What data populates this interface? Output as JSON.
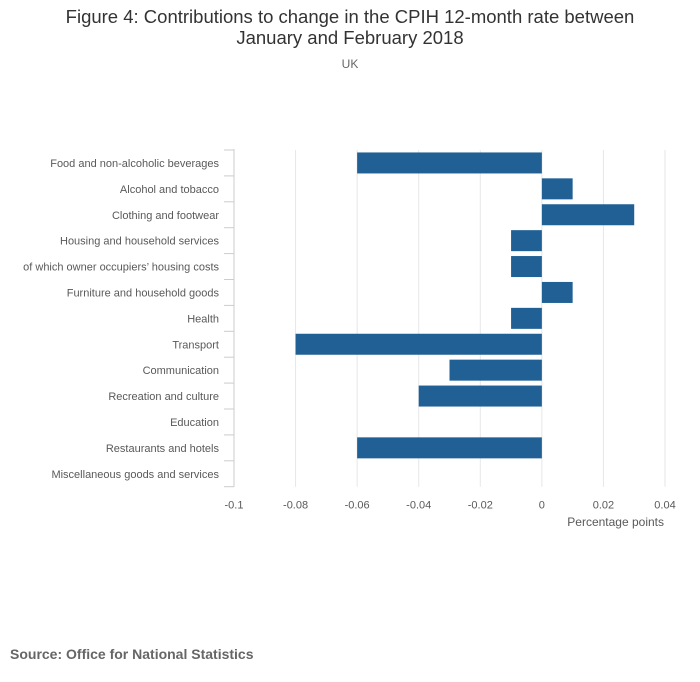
{
  "header": {
    "title_line1": "Figure 4: Contributions to change in the CPIH 12-month rate between",
    "title_line2": "January and February 2018",
    "subtitle": "UK"
  },
  "footer": {
    "source": "Source: Office for National Statistics"
  },
  "colors": {
    "bar": "#206095",
    "grid": "#e6e6e6",
    "axis": "#cccccc",
    "label": "#595959"
  },
  "chart_data": {
    "type": "bar",
    "orientation": "horizontal",
    "title": "Figure 4: Contributions to change in the CPIH 12-month rate between January and February 2018",
    "subtitle": "UK",
    "xlabel": "Percentage points",
    "ylabel": "",
    "xlim": [
      -0.1,
      0.04
    ],
    "x_ticks": [
      -0.1,
      -0.08,
      -0.06,
      -0.04,
      -0.02,
      0,
      0.02,
      0.04
    ],
    "x_tick_labels": [
      "-0.1",
      "-0.08",
      "-0.06",
      "-0.04",
      "-0.02",
      "0",
      "0.02",
      "0.04"
    ],
    "grid": true,
    "legend": "none",
    "categories": [
      "Food and non-alcoholic beverages",
      "Alcohol and tobacco",
      "Clothing and footwear",
      "Housing and household services",
      "of which owner occupiers’ housing costs",
      "Furniture and household goods",
      "Health",
      "Transport",
      "Communication",
      "Recreation and culture",
      "Education",
      "Restaurants and hotels",
      "Miscellaneous goods and services"
    ],
    "values": [
      -0.06,
      0.01,
      0.03,
      -0.01,
      -0.01,
      0.01,
      -0.01,
      -0.08,
      -0.03,
      -0.04,
      0,
      -0.06,
      0
    ]
  }
}
